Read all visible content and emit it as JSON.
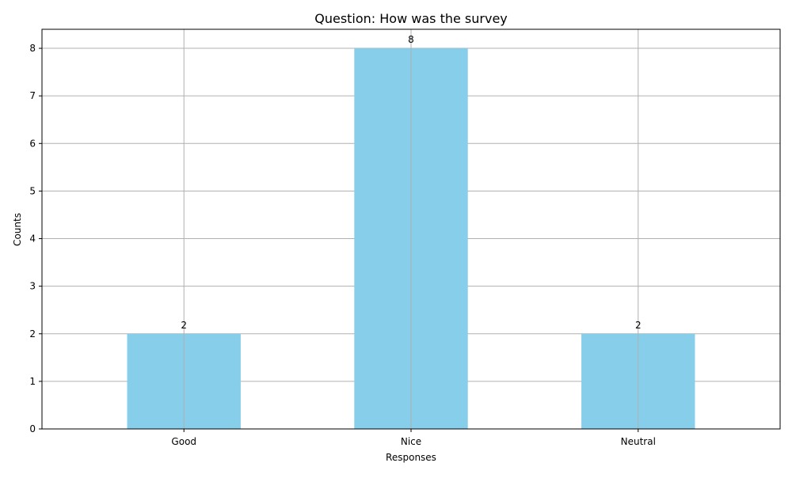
{
  "chart_data": {
    "type": "bar",
    "title": "Question: How was the survey",
    "xlabel": "Responses",
    "ylabel": "Counts",
    "categories": [
      "Good",
      "Nice",
      "Neutral"
    ],
    "values": [
      2,
      8,
      2
    ],
    "ylim": [
      0,
      8.4
    ],
    "yticks": [
      0,
      1,
      2,
      3,
      4,
      5,
      6,
      7,
      8
    ],
    "grid": true,
    "bar_color": "#87CEEB",
    "grid_color": "#b0b0b0",
    "data_labels": true
  }
}
